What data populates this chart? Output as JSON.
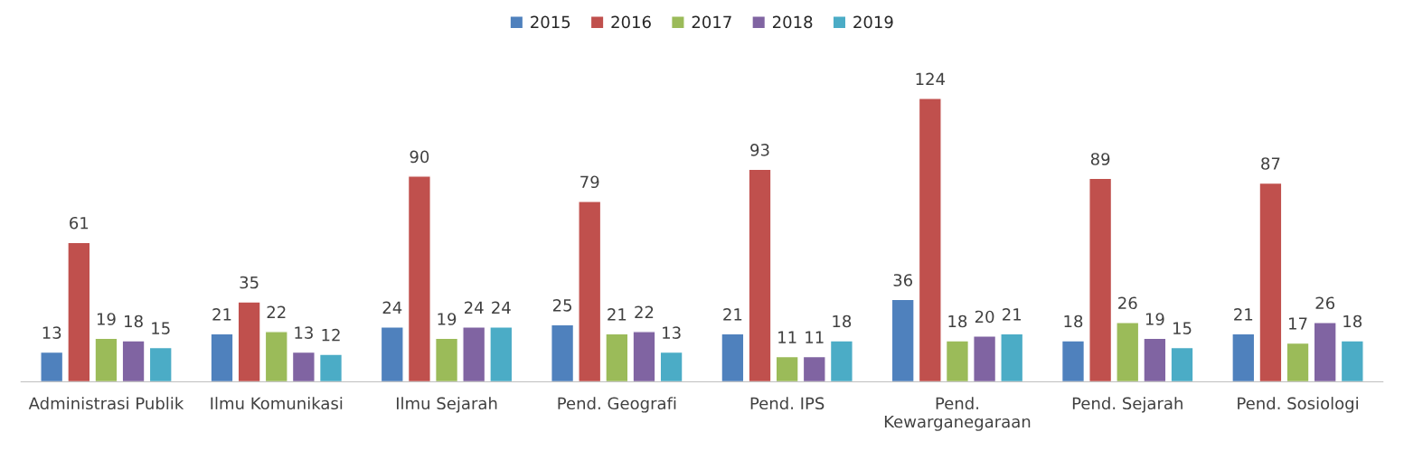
{
  "chart_data": {
    "type": "bar",
    "categories": [
      "Administrasi Publik",
      "Ilmu Komunikasi",
      "Ilmu Sejarah",
      "Pend. Geografi",
      "Pend. IPS",
      "Pend. Kewarganegaraan",
      "Pend. Sejarah",
      "Pend. Sosiologi"
    ],
    "series": [
      {
        "name": "2015",
        "color": "#4f81bd",
        "values": [
          13,
          21,
          24,
          25,
          21,
          36,
          18,
          21
        ]
      },
      {
        "name": "2016",
        "color": "#c0504d",
        "values": [
          61,
          35,
          90,
          79,
          93,
          124,
          89,
          87
        ]
      },
      {
        "name": "2017",
        "color": "#9bbb59",
        "values": [
          19,
          22,
          19,
          21,
          11,
          18,
          26,
          17
        ]
      },
      {
        "name": "2018",
        "color": "#8064a2",
        "values": [
          18,
          13,
          24,
          22,
          11,
          20,
          19,
          26
        ]
      },
      {
        "name": "2019",
        "color": "#4bacc6",
        "values": [
          15,
          12,
          24,
          13,
          18,
          21,
          15,
          18
        ]
      }
    ],
    "data_labels": true,
    "legend": "top",
    "grid": false
  }
}
